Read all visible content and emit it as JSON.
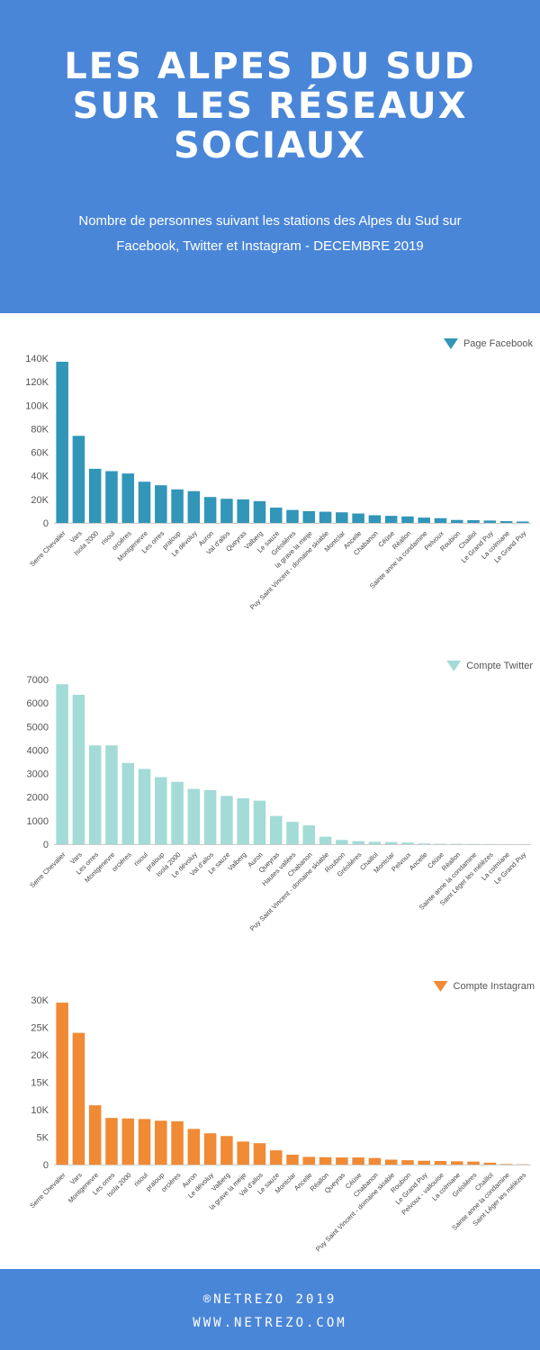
{
  "header": {
    "title_lines": [
      "LES ALPES DU SUD",
      "SUR LES RÉSEAUX",
      "SOCIAUX"
    ],
    "subtitle_lines": [
      "Nombre de personnes suivant les stations des Alpes du Sud sur",
      "Facebook, Twitter et Instagram - DECEMBRE 2019"
    ],
    "background_color": "#4a86d8"
  },
  "footer": {
    "line1": "®NETREZO 2019",
    "line2": "WWW.NETREZO.COM",
    "background_color": "#4a86d8"
  },
  "chart_data": [
    {
      "type": "bar",
      "title": "",
      "xlabel": "",
      "ylabel": "",
      "legend": "top-right",
      "color": "#3196b8",
      "ylim": [
        0,
        140000
      ],
      "ytick_values": [
        0,
        20000,
        40000,
        60000,
        80000,
        100000,
        120000,
        140000
      ],
      "ytick_labels": [
        "0",
        "20K",
        "40K",
        "60K",
        "80K",
        "100K",
        "120K",
        "140K"
      ],
      "grid": false,
      "series": [
        {
          "name": "Page Facebook",
          "categories": [
            "Serre Chevalier",
            "Vars",
            "Isola 2000",
            "risoul",
            "orcières",
            "Montgenevre",
            "Les orres",
            "praloup",
            "Le dévoluy",
            "Auron",
            "Val d'allos",
            "Queyras",
            "Valberg",
            "Le sauze",
            "Gréolières",
            "la grave la meije",
            "Puy Saint Vincent - domaine skiable",
            "Montclar",
            "Ancelle",
            "Chabanon",
            "Céüse",
            "Réallon",
            "Sainte anne la condamine",
            "Pelvoux",
            "Roubion",
            "Chaillol",
            "Le Grand Puy",
            "La colmiane",
            "Le Grand Puy"
          ],
          "values": [
            137000,
            74000,
            46000,
            44000,
            42000,
            35000,
            32000,
            28500,
            27000,
            22000,
            20500,
            20000,
            18500,
            13000,
            11000,
            10000,
            9500,
            9000,
            8000,
            6500,
            6000,
            5500,
            4500,
            4000,
            2500,
            2300,
            2000,
            1500,
            1200
          ]
        }
      ]
    },
    {
      "type": "bar",
      "title": "",
      "xlabel": "",
      "ylabel": "",
      "legend": "top-right",
      "color": "#a3dbd7",
      "ylim": [
        0,
        7000
      ],
      "ytick_values": [
        0,
        1000,
        2000,
        3000,
        4000,
        5000,
        6000,
        7000
      ],
      "ytick_labels": [
        "0",
        "1000",
        "2000",
        "3000",
        "4000",
        "5000",
        "6000",
        "7000"
      ],
      "grid": false,
      "series": [
        {
          "name": "Compte Twitter",
          "categories": [
            "Serre Chevalier",
            "Vars",
            "Les orres",
            "Montgenevre",
            "orcières",
            "risoul",
            "praloup",
            "Isola 2000",
            "Le dévoluy",
            "Val d'allos",
            "Le sauze",
            "Valberg",
            "Auron",
            "Queyras",
            "Hautes vallées",
            "Chabanon",
            "Puy Saint Vincent - domaine skiable",
            "Roubion",
            "Gréolières",
            "Chaillol",
            "Montclar",
            "Pelvoux",
            "Ancelle",
            "Céüse",
            "Réallon",
            "Sainte anne la condamine",
            "Saint Léger les mélèzes",
            "La colmiane",
            "Le Grand Puy"
          ],
          "values": [
            6800,
            6350,
            4200,
            4200,
            3450,
            3200,
            2850,
            2650,
            2350,
            2300,
            2050,
            1950,
            1850,
            1200,
            950,
            800,
            320,
            180,
            130,
            100,
            90,
            70,
            30,
            20,
            15,
            10,
            8,
            5,
            5
          ]
        }
      ]
    },
    {
      "type": "bar",
      "title": "",
      "xlabel": "",
      "ylabel": "",
      "legend": "top-right",
      "color": "#f08a35",
      "ylim": [
        0,
        30000
      ],
      "ytick_values": [
        0,
        5000,
        10000,
        15000,
        20000,
        25000,
        30000
      ],
      "ytick_labels": [
        "0",
        "5K",
        "10K",
        "15K",
        "20K",
        "25K",
        "30K"
      ],
      "grid": false,
      "series": [
        {
          "name": "Compte Instagram",
          "categories": [
            "Serre Chevalier",
            "Vars",
            "Montgenevre",
            "Les orres",
            "Isola 2000",
            "risoul",
            "praloup",
            "orcières",
            "Auron",
            "Le dévoluy",
            "Valberg",
            "la grave la meije",
            "Val d'allos",
            "Le sauze",
            "Montclar",
            "Ancelle",
            "Réallon",
            "Queyras",
            "Céüse",
            "Chabanon",
            "Puy Saint Vincent - domaine skiable",
            "Roubion",
            "Le Grand Puy",
            "Pelvoux - vallouise",
            "La colmiane",
            "Gréolières",
            "Chaillol",
            "Sainte anne la condamine",
            "Saint Léger les mélèzes"
          ],
          "values": [
            29500,
            24000,
            10800,
            8500,
            8400,
            8300,
            8000,
            7900,
            6500,
            5700,
            5200,
            4200,
            3900,
            2600,
            1800,
            1400,
            1350,
            1300,
            1300,
            1200,
            900,
            800,
            700,
            650,
            600,
            550,
            350,
            100,
            50
          ]
        }
      ]
    }
  ]
}
